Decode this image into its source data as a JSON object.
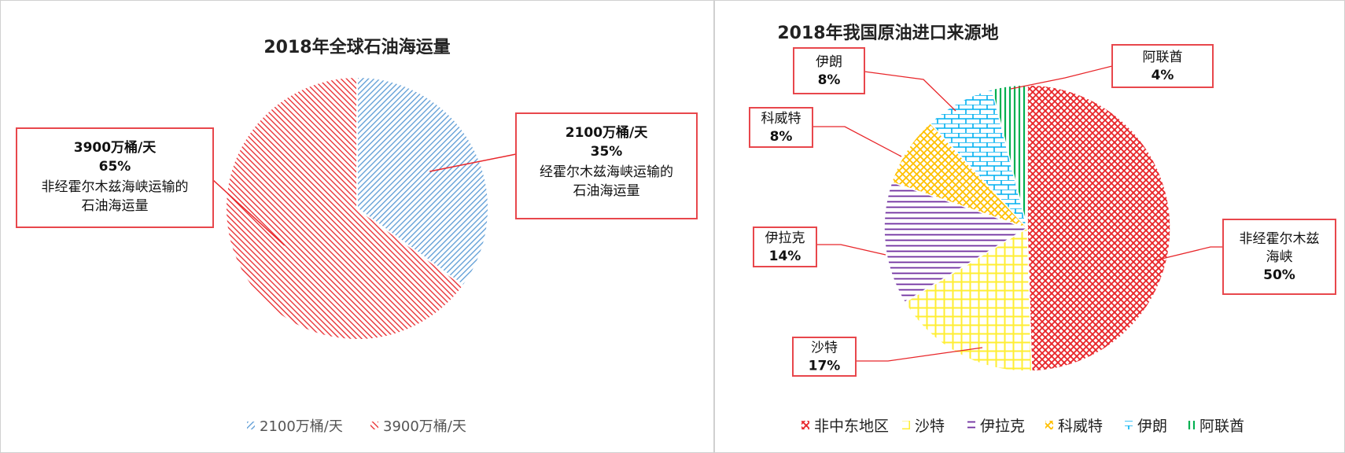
{
  "chart_data": [
    {
      "type": "pie",
      "title": "2018年全球石油海运量",
      "slices": [
        {
          "legend": "2100万桶/天",
          "value": 35,
          "pct_label": "35%",
          "desc": [
            "经霍尔木兹海峡运输的",
            "石油海运量"
          ]
        },
        {
          "legend": "3900万桶/天",
          "value": 65,
          "pct_label": "65%",
          "desc": [
            "非经霍尔木兹海峡运输的",
            "石油海运量"
          ]
        }
      ],
      "legend_position": "bottom"
    },
    {
      "type": "pie",
      "title": "2018年我国原油进口来源地",
      "slices": [
        {
          "legend": "非中东地区",
          "value": 50,
          "label_lines": [
            "非经霍尔木兹",
            "海峡"
          ],
          "pct_label": "50%"
        },
        {
          "legend": "沙特",
          "value": 17,
          "label_lines": [
            "沙特"
          ],
          "pct_label": "17%"
        },
        {
          "legend": "伊拉克",
          "value": 14,
          "label_lines": [
            "伊拉克"
          ],
          "pct_label": "14%"
        },
        {
          "legend": "科威特",
          "value": 8,
          "label_lines": [
            "科威特"
          ],
          "pct_label": "8%"
        },
        {
          "legend": "伊朗",
          "value": 8,
          "label_lines": [
            "伊朗"
          ],
          "pct_label": "8%"
        },
        {
          "legend": "阿联酋",
          "value": 4,
          "label_lines": [
            "阿联酋"
          ],
          "pct_label": "4%"
        }
      ],
      "legend_position": "bottom"
    }
  ],
  "colors": {
    "blue": "#5b9bd5",
    "red": "#e8262a",
    "yellow": "#ffee33",
    "purple": "#7030a0",
    "gold": "#ffc000",
    "cyan": "#00b0f0",
    "green": "#00b050",
    "label_border": "#e8474c"
  }
}
